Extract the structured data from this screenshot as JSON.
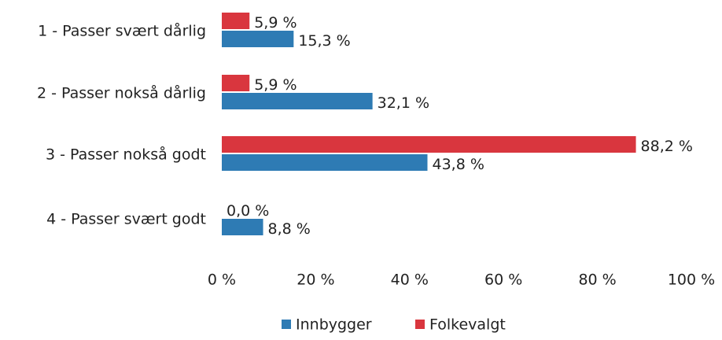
{
  "chart_data": {
    "type": "bar",
    "orientation": "horizontal",
    "categories": [
      "1 - Passer svært dårlig",
      "2 - Passer nokså dårlig",
      "3 - Passer nokså godt",
      "4 - Passer svært godt"
    ],
    "series": [
      {
        "name": "Innbygger",
        "color": "#2e7bb4",
        "values": [
          15.3,
          32.1,
          43.8,
          8.8
        ],
        "value_labels": [
          "15,3 %",
          "32,1 %",
          "43,8 %",
          "8,8 %"
        ]
      },
      {
        "name": "Folkevalgt",
        "color": "#d9363e",
        "values": [
          5.9,
          5.9,
          88.2,
          0.0
        ],
        "value_labels": [
          "5,9 %",
          "5,9 %",
          "88,2 %",
          "0,0 %"
        ]
      }
    ],
    "xlim": [
      0,
      100
    ],
    "xticks": [
      {
        "value": 0,
        "label": "0 %"
      },
      {
        "value": 20,
        "label": "20 %"
      },
      {
        "value": 40,
        "label": "40 %"
      },
      {
        "value": 60,
        "label": "60 %"
      },
      {
        "value": 80,
        "label": "80 %"
      },
      {
        "value": 100,
        "label": "100 %"
      }
    ],
    "grid": false,
    "legend": "bottom"
  }
}
